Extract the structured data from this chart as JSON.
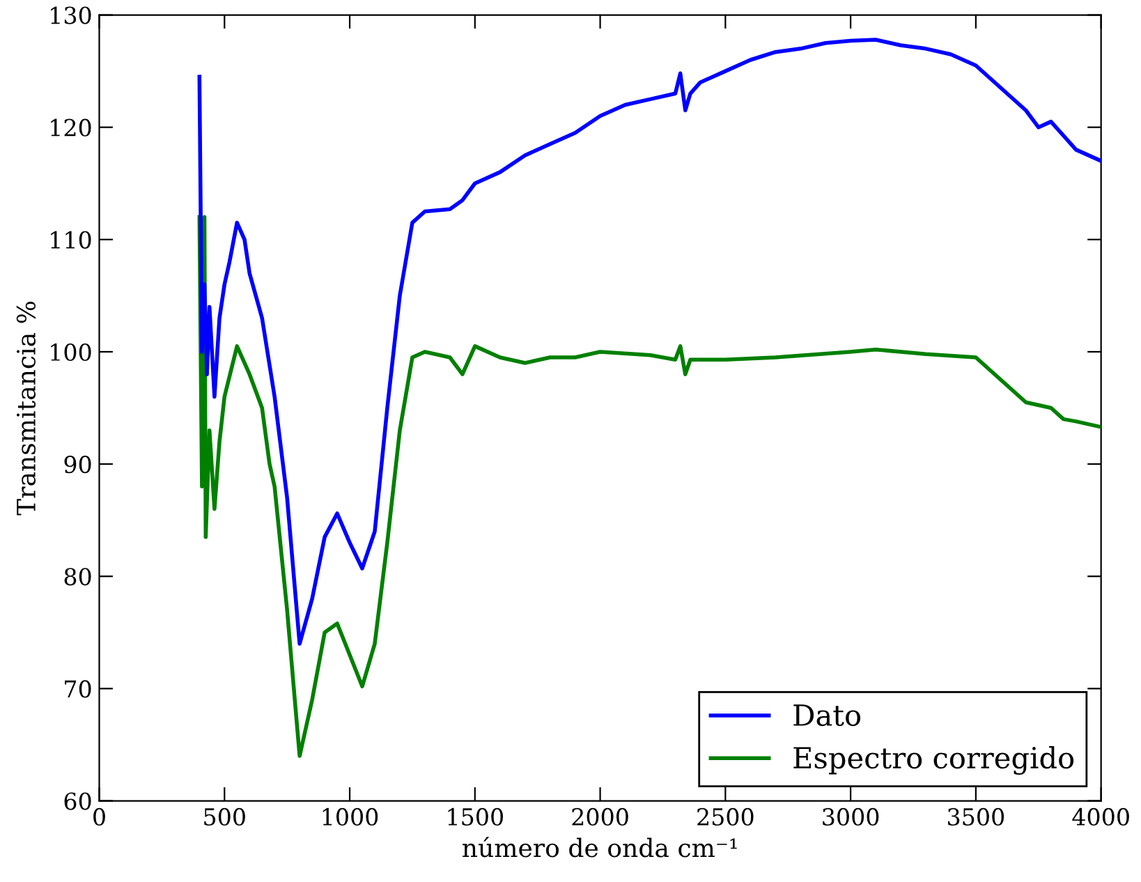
{
  "chart_data": {
    "type": "line",
    "xlabel": "número de onda cm⁻¹",
    "ylabel": "Transmitancia %",
    "xlim": [
      0,
      4000
    ],
    "ylim": [
      60,
      130
    ],
    "xticks": [
      0,
      500,
      1000,
      1500,
      2000,
      2500,
      3000,
      3500,
      4000
    ],
    "yticks": [
      60,
      70,
      80,
      90,
      100,
      110,
      120,
      130
    ],
    "grid": false,
    "legend": "bottom right",
    "marker": "none",
    "line_style": "solid",
    "series": [
      {
        "name": "Dato",
        "color": "#0000ff",
        "x": [
          400,
          410,
          420,
          430,
          440,
          460,
          480,
          500,
          520,
          550,
          580,
          600,
          650,
          700,
          750,
          800,
          850,
          900,
          950,
          1000,
          1050,
          1100,
          1150,
          1200,
          1250,
          1300,
          1400,
          1450,
          1500,
          1600,
          1700,
          1800,
          1900,
          2000,
          2100,
          2200,
          2300,
          2320,
          2340,
          2360,
          2400,
          2500,
          2600,
          2700,
          2800,
          2900,
          3000,
          3100,
          3200,
          3300,
          3400,
          3500,
          3600,
          3700,
          3750,
          3800,
          3900,
          4000
        ],
        "values": [
          124.5,
          100,
          106,
          98,
          104,
          96,
          103,
          106,
          108,
          111.5,
          110,
          107,
          103,
          96,
          87,
          74,
          78,
          83.5,
          85.6,
          83,
          80.7,
          84,
          95,
          105,
          111.5,
          112.5,
          112.7,
          113.5,
          115,
          116,
          117.5,
          118.5,
          119.5,
          121,
          122,
          122.5,
          123,
          124.8,
          121.5,
          123,
          124,
          125,
          126,
          126.7,
          127,
          127.5,
          127.7,
          127.8,
          127.3,
          127,
          126.5,
          125.5,
          123.5,
          121.5,
          120,
          120.5,
          118,
          117
        ]
      },
      {
        "name": "Espectro corregido",
        "color": "#008000",
        "x": [
          400,
          410,
          420,
          425,
          440,
          460,
          480,
          500,
          550,
          600,
          650,
          680,
          700,
          750,
          800,
          850,
          900,
          950,
          1000,
          1050,
          1100,
          1150,
          1200,
          1250,
          1300,
          1400,
          1450,
          1500,
          1600,
          1700,
          1800,
          1900,
          2000,
          2200,
          2300,
          2320,
          2340,
          2360,
          2500,
          2700,
          3000,
          3100,
          3300,
          3500,
          3600,
          3700,
          3800,
          3850,
          3900,
          4000
        ],
        "values": [
          112,
          88,
          112,
          83.5,
          93,
          86,
          92,
          96,
          100.5,
          98,
          95,
          90,
          88,
          77,
          64,
          69,
          75,
          75.8,
          73,
          70.2,
          74,
          83,
          93,
          99.5,
          100,
          99.5,
          98,
          100.5,
          99.5,
          99,
          99.5,
          99.5,
          100,
          99.7,
          99.3,
          100.5,
          98,
          99.3,
          99.3,
          99.5,
          100,
          100.2,
          99.8,
          99.5,
          97.5,
          95.5,
          95,
          94,
          93.8,
          93.3
        ]
      }
    ]
  }
}
